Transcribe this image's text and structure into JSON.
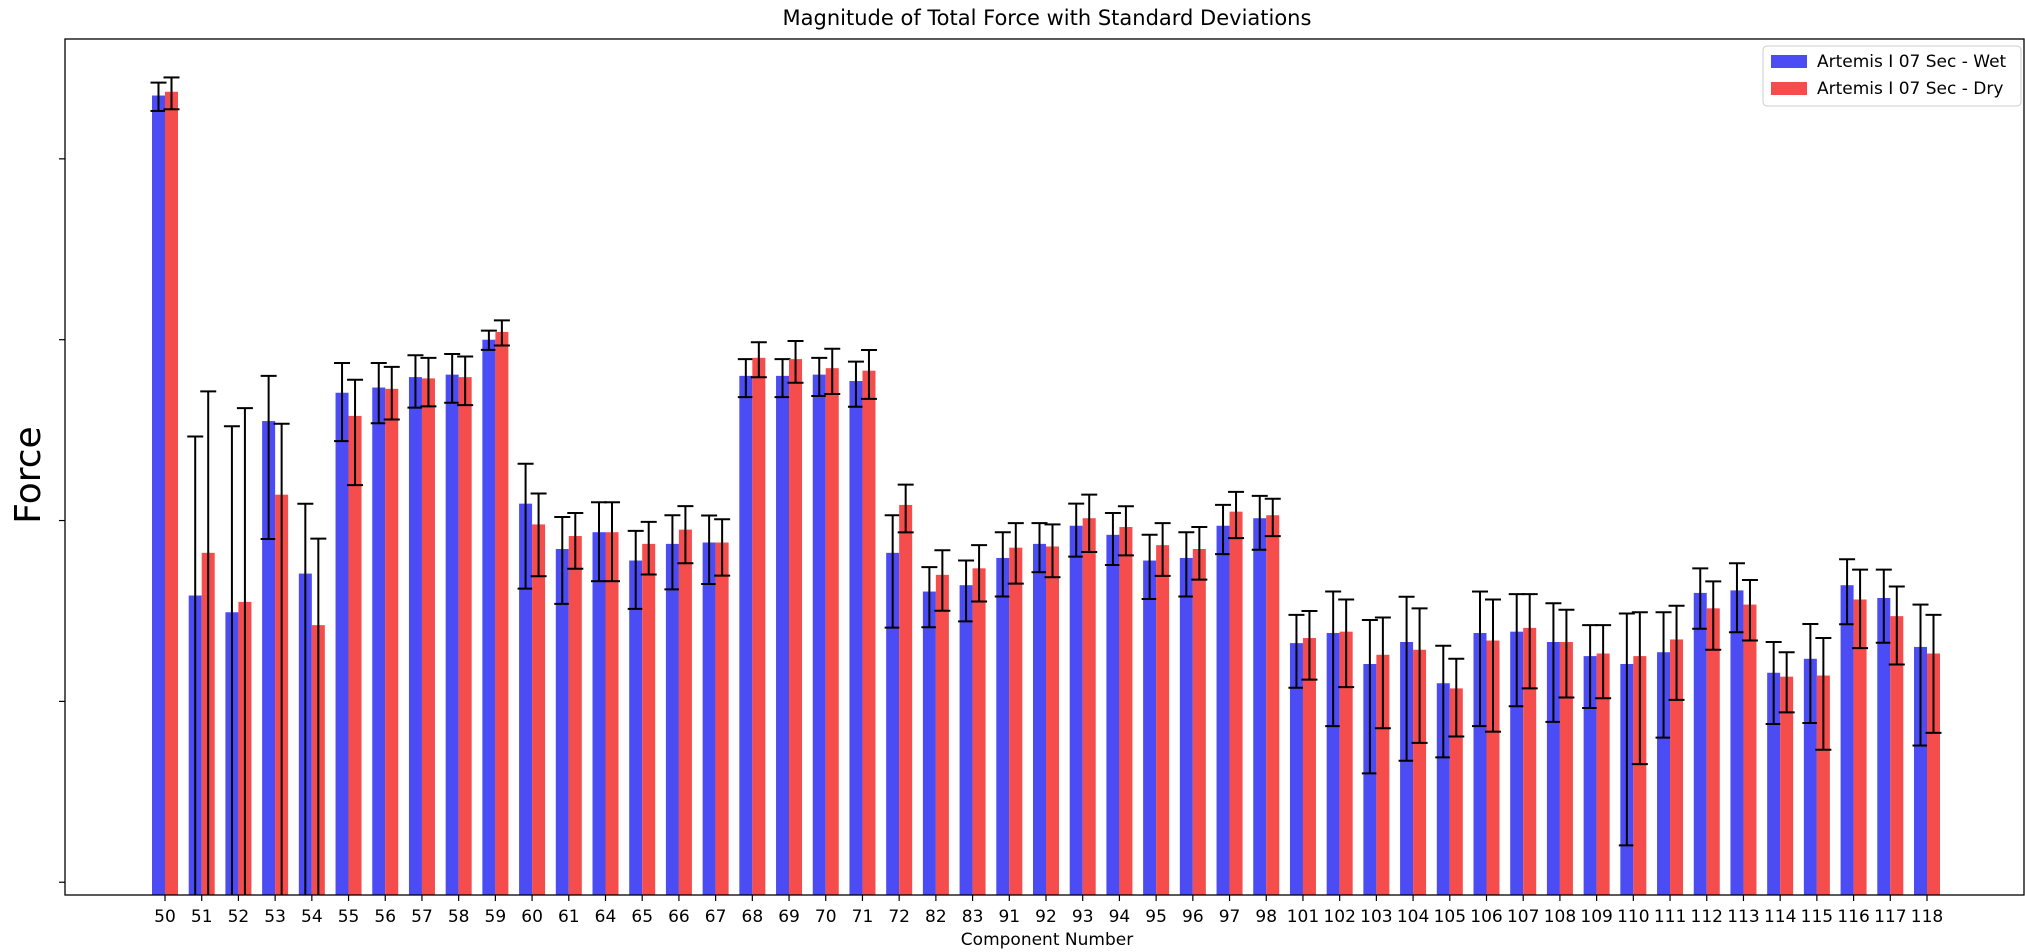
{
  "chart_data": {
    "type": "bar",
    "title": "Magnitude of Total Force with Standard Deviations",
    "xlabel": "Component Number",
    "ylabel": "Force",
    "log_scale": true,
    "legend_position": "upper right",
    "categories": [
      "50",
      "51",
      "52",
      "53",
      "54",
      "55",
      "56",
      "57",
      "58",
      "59",
      "60",
      "61",
      "64",
      "65",
      "66",
      "67",
      "68",
      "69",
      "70",
      "71",
      "72",
      "82",
      "83",
      "91",
      "92",
      "93",
      "94",
      "95",
      "96",
      "97",
      "98",
      "101",
      "102",
      "103",
      "104",
      "105",
      "106",
      "107",
      "108",
      "109",
      "110",
      "111",
      "112",
      "113",
      "114",
      "115",
      "116",
      "117",
      "118"
    ],
    "ylim": [
      0.85,
      46000
    ],
    "yticks": [
      1,
      10,
      100,
      1000,
      10000
    ],
    "series": [
      {
        "name": "Artemis I 07 Sec - Wet",
        "color": "#4c4cf5",
        "values": [
          22400,
          38.5,
          31.1,
          355,
          50.9,
          509,
          544,
          621,
          641,
          1000,
          124,
          69.6,
          86.2,
          60.1,
          74.3,
          75.6,
          631,
          631,
          641,
          591,
          66.3,
          40.5,
          43.9,
          62.1,
          74.3,
          93.6,
          83.4,
          60.1,
          62.1,
          93.6,
          103,
          21,
          23.9,
          16.1,
          21.3,
          12.6,
          23.9,
          24.3,
          21.3,
          17.8,
          16.1,
          18.7,
          39.8,
          41.1,
          14.4,
          17.2,
          43.9,
          37.3,
          20
        ],
        "errors": [
          4000,
          253,
          301,
          276,
          73,
          234,
          199,
          200,
          193,
          122,
          82,
          35,
          40,
          27.6,
          32.7,
          31,
          150,
          150,
          153,
          165,
          40.7,
          14.8,
          16.2,
          24.1,
          22.5,
          30.4,
          26.6,
          23.3,
          24.1,
          28.4,
          34,
          9.1,
          16.6,
          12.1,
          16.6,
          7.7,
          16.6,
          14.9,
          13.6,
          8.6,
          14.5,
          12.4,
          14.6,
          17,
          6.9,
          9.6,
          17.2,
          16.2,
          14.3
        ]
      },
      {
        "name": "Artemis I 07 Sec - Dry",
        "color": "#f54c4c",
        "values": [
          23500,
          66.3,
          35.5,
          139,
          26.4,
          379,
          535,
          611,
          621,
          1104,
          95.2,
          82.1,
          86.2,
          74.3,
          89.1,
          75.6,
          794,
          781,
          696,
          674,
          122,
          50.1,
          54.4,
          70.8,
          71.9,
          103,
          92.1,
          73.1,
          69.6,
          112,
          107,
          22.4,
          24.3,
          18.1,
          19.3,
          11.8,
          21.7,
          25.5,
          21.3,
          18.4,
          17.8,
          22,
          32.7,
          34.3,
          13.7,
          13.9,
          36.6,
          29.6,
          18.4
        ],
        "errors": [
          4700,
          452,
          383,
          204,
          53,
          222,
          173,
          183,
          186,
          175,
          46,
          28,
          40,
          24,
          31,
          26,
          174,
          203,
          195,
          203,
          36,
          18.4,
          18.7,
          26,
          23.3,
          36,
          27.9,
          23.7,
          22.5,
          32,
          25,
          9.2,
          12.3,
          11,
          13.4,
          5.4,
          14.9,
          13.7,
          10.8,
          8,
          13.3,
          11.8,
          13.4,
          12.6,
          5,
          8.5,
          16.9,
          13.6,
          11.7
        ]
      }
    ]
  }
}
